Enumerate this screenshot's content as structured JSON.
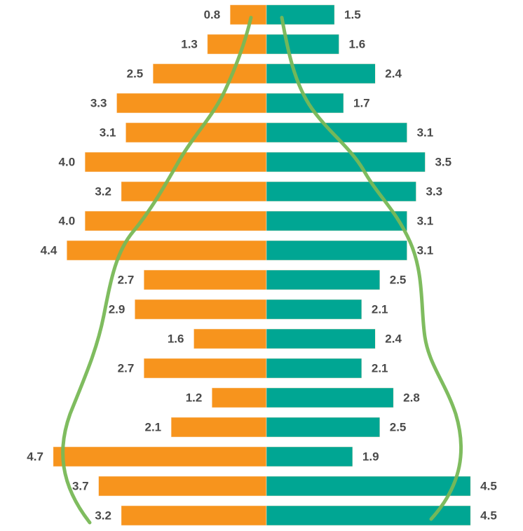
{
  "chart_data": {
    "type": "pyramid",
    "categories": [
      null,
      null,
      null,
      null,
      null,
      null,
      null,
      null,
      null,
      null,
      null,
      null,
      null,
      null,
      null,
      null,
      null,
      null
    ],
    "xlim": [
      0,
      5
    ],
    "series": [
      {
        "color": "#f7941d",
        "side": "left",
        "values": [
          0.8,
          1.3,
          2.5,
          3.3,
          3.1,
          4.0,
          3.2,
          4.0,
          4.4,
          2.7,
          2.9,
          1.6,
          2.7,
          1.2,
          2.1,
          4.7,
          3.7,
          3.2
        ],
        "value_labels": [
          "0.8",
          "1.3",
          "2.5",
          "3.3",
          "3.1",
          "4.0",
          "3.2",
          "4.0",
          "4.4",
          "2.7",
          "2.9",
          "1.6",
          "2.7",
          "1.2",
          "2.1",
          "4.7",
          "3.7",
          "3.2"
        ]
      },
      {
        "color": "#00a693",
        "side": "right",
        "values": [
          1.5,
          1.6,
          2.4,
          1.7,
          3.1,
          3.5,
          3.3,
          3.1,
          3.1,
          2.5,
          2.1,
          2.4,
          2.1,
          2.8,
          2.5,
          1.9,
          4.5,
          4.5
        ]
      }
    ]
  }
}
